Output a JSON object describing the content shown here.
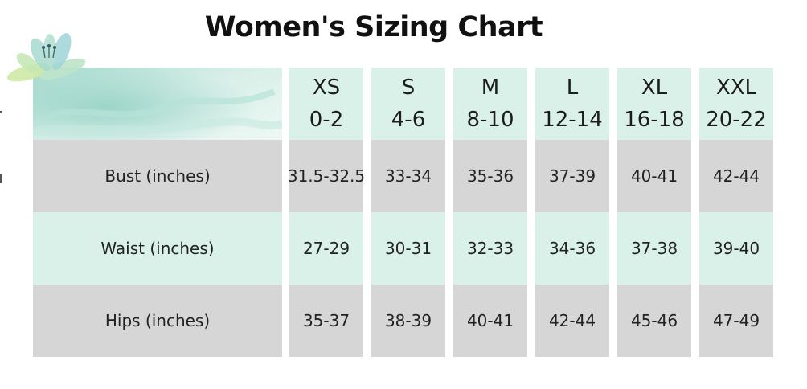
{
  "title": "Women's Sizing Chart",
  "colors": {
    "mint": "#daf1ea",
    "gray": "#d6d6d6",
    "watercolor_light": "#e3f3ee",
    "watercolor_dark": "#9fd4c9"
  },
  "sizes": [
    {
      "label": "XS",
      "range": "0-2"
    },
    {
      "label": "S",
      "range": "4-6"
    },
    {
      "label": "M",
      "range": "8-10"
    },
    {
      "label": "L",
      "range": "12-14"
    },
    {
      "label": "XL",
      "range": "16-18"
    },
    {
      "label": "XXL",
      "range": "20-22"
    }
  ],
  "rows": [
    {
      "label": "Bust (inches)",
      "values": [
        "31.5-32.5",
        "33-34",
        "35-36",
        "37-39",
        "40-41",
        "42-44"
      ]
    },
    {
      "label": "Waist (inches)",
      "values": [
        "27-29",
        "30-31",
        "32-33",
        "34-36",
        "37-38",
        "39-40"
      ]
    },
    {
      "label": "Hips (inches)",
      "values": [
        "35-37",
        "38-39",
        "40-41",
        "42-44",
        "45-46",
        "47-49"
      ]
    }
  ]
}
